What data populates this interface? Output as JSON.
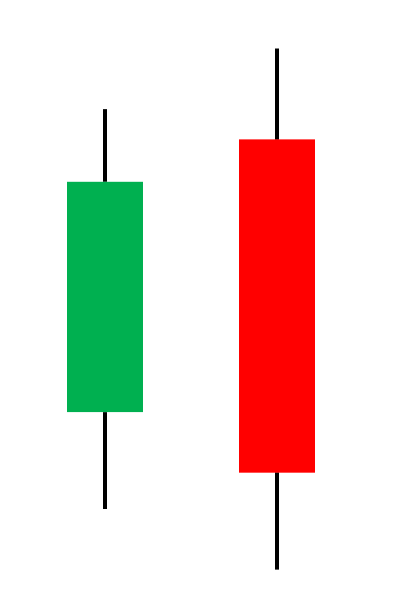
{
  "colors": {
    "background": "#ffffff",
    "bullish": "#00b050",
    "bearish": "#ff0000",
    "wick": "#000000"
  },
  "chart_data": {
    "type": "candlestick",
    "title": "",
    "xlabel": "",
    "ylabel": "",
    "axes_visible": false,
    "grid": false,
    "legend": "none",
    "ylim": [
      0,
      1
    ],
    "candles": [
      {
        "direction": "bullish",
        "open": 0.32,
        "close": 0.7,
        "high": 0.82,
        "low": 0.16
      },
      {
        "direction": "bearish",
        "open": 0.77,
        "close": 0.22,
        "high": 0.92,
        "low": 0.06
      }
    ]
  }
}
